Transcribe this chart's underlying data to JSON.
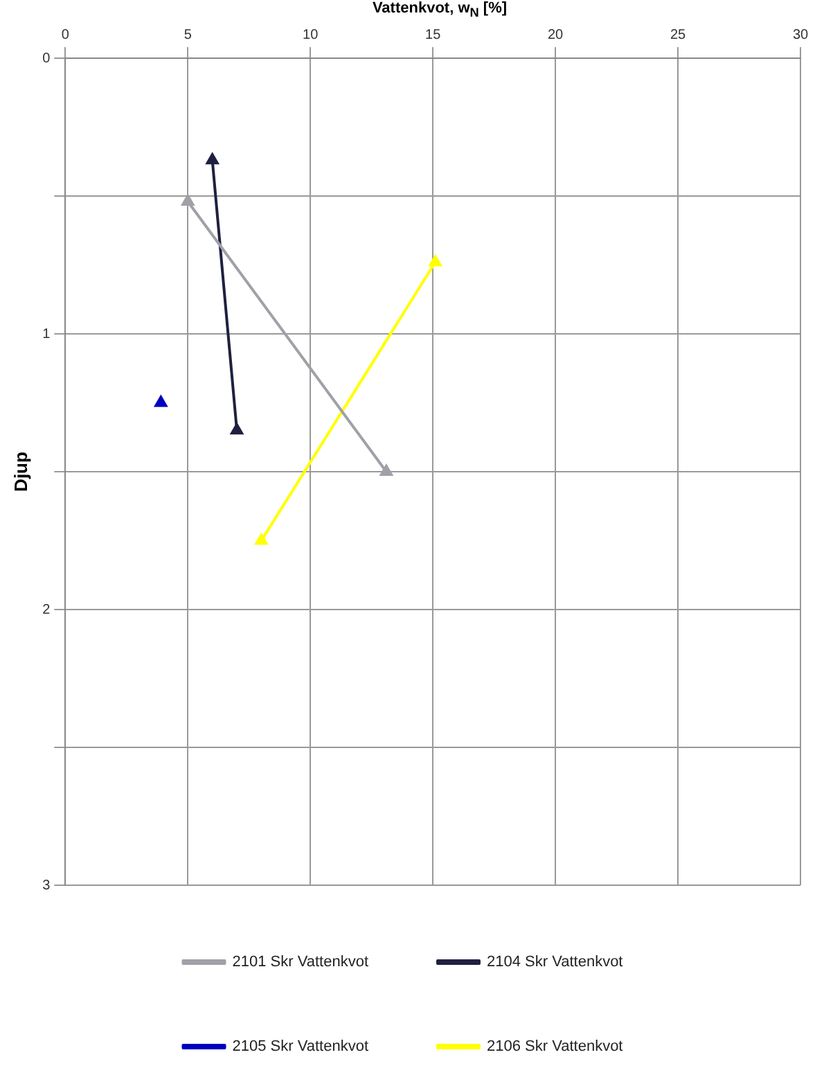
{
  "chart_data": {
    "type": "line",
    "xlabel": "Vattenkvot, w$_{N}$ [%]",
    "ylabel": "Djup",
    "xlim": [
      0,
      30
    ],
    "xticks": [
      0,
      5,
      10,
      15,
      20,
      25,
      30
    ],
    "ylim": [
      3,
      0
    ],
    "yticks": [
      0,
      {
        "value": 0.5,
        "label": null
      },
      1,
      {
        "value": 1.5,
        "label": null
      },
      2,
      {
        "value": 2.5,
        "label": null
      },
      3
    ],
    "grid": true,
    "legend": "bottom",
    "marker": "triangle",
    "line_style": "solid",
    "series": [
      {
        "name": "2101 Skr Vattenkvot",
        "color": "#a0a0a8",
        "x": [
          5,
          13.1
        ],
        "values": [
          0.52,
          1.5
        ]
      },
      {
        "name": "2104 Skr Vattenkvot",
        "color": "#1f2040",
        "x": [
          6,
          7
        ],
        "values": [
          0.37,
          1.35
        ]
      },
      {
        "name": "2105 Skr Vattenkvot",
        "color": "#0000c0",
        "x": [
          3.9
        ],
        "values": [
          1.25
        ]
      },
      {
        "name": "2106 Skr Vattenkvot",
        "color": "#ffff00",
        "x": [
          15.1,
          8
        ],
        "values": [
          0.74,
          1.75
        ]
      }
    ]
  }
}
